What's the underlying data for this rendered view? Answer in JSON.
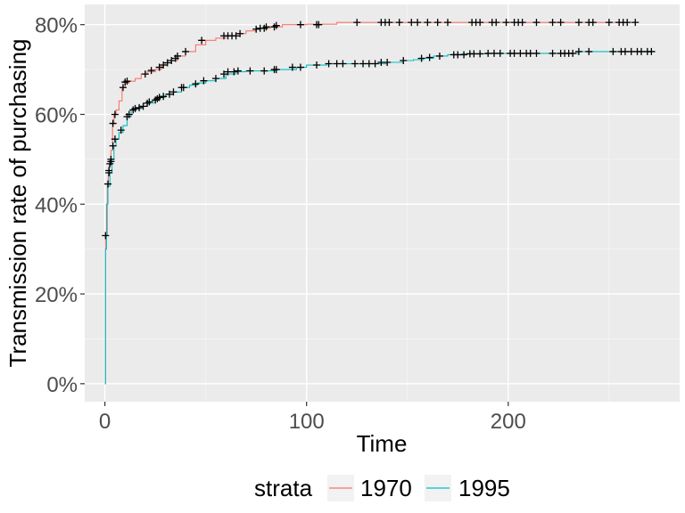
{
  "chart_data": {
    "type": "line",
    "xlabel": "Time",
    "ylabel": "Transmission rate of purchasing",
    "xlim": [
      -10,
      285
    ],
    "ylim": [
      -0.04,
      0.845
    ],
    "x_ticks": [
      0,
      100,
      200
    ],
    "x_tick_labels": [
      "0",
      "100",
      "200"
    ],
    "y_ticks": [
      0,
      0.2,
      0.4,
      0.6,
      0.8
    ],
    "y_tick_labels": [
      "0%",
      "20%",
      "40%",
      "60%",
      "80%"
    ],
    "grid": true,
    "background": "#ebebeb",
    "legend": {
      "title": "strata",
      "position": "bottom",
      "entries": [
        "1970",
        "1995"
      ]
    },
    "series": [
      {
        "name": "1970",
        "color": "#f8766d",
        "steps": [
          [
            0,
            0
          ],
          [
            0.3,
            0.33
          ],
          [
            1.2,
            0.44
          ],
          [
            1.7,
            0.47
          ],
          [
            2.2,
            0.49
          ],
          [
            3,
            0.52
          ],
          [
            3.8,
            0.58
          ],
          [
            4.5,
            0.6
          ],
          [
            5.5,
            0.61
          ],
          [
            7,
            0.63
          ],
          [
            8.5,
            0.66
          ],
          [
            10,
            0.67
          ],
          [
            12,
            0.674
          ],
          [
            15,
            0.68
          ],
          [
            18,
            0.69
          ],
          [
            21,
            0.695
          ],
          [
            25,
            0.7
          ],
          [
            28,
            0.71
          ],
          [
            30,
            0.715
          ],
          [
            33,
            0.72
          ],
          [
            36,
            0.73
          ],
          [
            40,
            0.74
          ],
          [
            45,
            0.755
          ],
          [
            50,
            0.765
          ],
          [
            55,
            0.77
          ],
          [
            60,
            0.775
          ],
          [
            65,
            0.78
          ],
          [
            70,
            0.786
          ],
          [
            75,
            0.792
          ],
          [
            82,
            0.795
          ],
          [
            88,
            0.8
          ],
          [
            100,
            0.801
          ],
          [
            115,
            0.805
          ],
          [
            263,
            0.805
          ]
        ],
        "censor_x": [
          0.3,
          1.5,
          2,
          2.5,
          3,
          4,
          5,
          9,
          10,
          11,
          20,
          23,
          27,
          29,
          31,
          33,
          35,
          36,
          40,
          48,
          59,
          61,
          63,
          65,
          67,
          75,
          77,
          79,
          80,
          84,
          85,
          97,
          105,
          106,
          125,
          137,
          139,
          141,
          146,
          152,
          155,
          160,
          165,
          170,
          182,
          184,
          186,
          192,
          194,
          199,
          203,
          205,
          207,
          214,
          222,
          226,
          235,
          240,
          242,
          250,
          255,
          257,
          259,
          263
        ],
        "censor_y": [
          0.33,
          0.445,
          0.475,
          0.49,
          0.495,
          0.58,
          0.6,
          0.66,
          0.672,
          0.674,
          0.69,
          0.698,
          0.705,
          0.71,
          0.715,
          0.72,
          0.725,
          0.73,
          0.74,
          0.765,
          0.775,
          0.775,
          0.775,
          0.775,
          0.78,
          0.79,
          0.792,
          0.792,
          0.795,
          0.795,
          0.798,
          0.8,
          0.8,
          0.8,
          0.805,
          0.805,
          0.805,
          0.805,
          0.805,
          0.805,
          0.805,
          0.805,
          0.805,
          0.805,
          0.805,
          0.805,
          0.805,
          0.805,
          0.805,
          0.805,
          0.805,
          0.805,
          0.805,
          0.805,
          0.805,
          0.805,
          0.805,
          0.805,
          0.805,
          0.805,
          0.805,
          0.805,
          0.805,
          0.805
        ]
      },
      {
        "name": "1995",
        "color": "#00bfc4",
        "steps": [
          [
            0,
            0
          ],
          [
            0.3,
            0.3
          ],
          [
            0.8,
            0.4
          ],
          [
            1.5,
            0.44
          ],
          [
            2.5,
            0.47
          ],
          [
            3.5,
            0.5
          ],
          [
            4.5,
            0.53
          ],
          [
            5.5,
            0.545
          ],
          [
            7,
            0.56
          ],
          [
            9,
            0.575
          ],
          [
            11,
            0.595
          ],
          [
            13,
            0.61
          ],
          [
            15,
            0.613
          ],
          [
            18,
            0.618
          ],
          [
            21,
            0.625
          ],
          [
            24,
            0.632
          ],
          [
            27,
            0.638
          ],
          [
            30,
            0.645
          ],
          [
            34,
            0.65
          ],
          [
            38,
            0.66
          ],
          [
            42,
            0.665
          ],
          [
            46,
            0.67
          ],
          [
            50,
            0.675
          ],
          [
            55,
            0.68
          ],
          [
            60,
            0.69
          ],
          [
            65,
            0.695
          ],
          [
            70,
            0.697
          ],
          [
            75,
            0.697
          ],
          [
            85,
            0.7
          ],
          [
            95,
            0.705
          ],
          [
            100,
            0.71
          ],
          [
            110,
            0.713
          ],
          [
            125,
            0.713
          ],
          [
            140,
            0.716
          ],
          [
            148,
            0.72
          ],
          [
            153,
            0.722
          ],
          [
            158,
            0.725
          ],
          [
            163,
            0.73
          ],
          [
            170,
            0.733
          ],
          [
            177,
            0.735
          ],
          [
            190,
            0.736
          ],
          [
            235,
            0.74
          ],
          [
            273,
            0.74
          ]
        ],
        "censor_x": [
          2,
          3,
          4,
          5,
          8,
          11,
          12,
          14,
          15,
          17,
          19,
          21,
          22,
          25,
          26,
          27,
          29,
          32,
          34,
          38,
          39,
          45,
          49,
          55,
          59,
          61,
          64,
          66,
          72,
          79,
          84,
          85,
          93,
          97,
          105,
          111,
          115,
          118,
          124,
          128,
          131,
          134,
          137,
          140,
          148,
          157,
          161,
          166,
          173,
          175,
          178,
          181,
          183,
          186,
          190,
          193,
          196,
          201,
          203,
          206,
          209,
          211,
          214,
          222,
          226,
          228,
          230,
          232,
          235,
          240,
          252,
          256,
          258,
          261,
          264,
          266,
          269,
          271
        ],
        "censor_y": [
          0.47,
          0.5,
          0.53,
          0.545,
          0.565,
          0.595,
          0.6,
          0.61,
          0.613,
          0.615,
          0.618,
          0.625,
          0.628,
          0.632,
          0.635,
          0.638,
          0.64,
          0.645,
          0.65,
          0.66,
          0.66,
          0.668,
          0.675,
          0.68,
          0.69,
          0.695,
          0.695,
          0.697,
          0.697,
          0.697,
          0.7,
          0.7,
          0.705,
          0.705,
          0.71,
          0.713,
          0.713,
          0.713,
          0.713,
          0.713,
          0.713,
          0.713,
          0.716,
          0.716,
          0.72,
          0.725,
          0.727,
          0.73,
          0.733,
          0.733,
          0.733,
          0.735,
          0.735,
          0.735,
          0.736,
          0.736,
          0.736,
          0.736,
          0.736,
          0.736,
          0.736,
          0.736,
          0.736,
          0.736,
          0.736,
          0.736,
          0.736,
          0.736,
          0.74,
          0.74,
          0.74,
          0.74,
          0.74,
          0.74,
          0.74,
          0.74,
          0.74,
          0.74
        ]
      }
    ]
  }
}
